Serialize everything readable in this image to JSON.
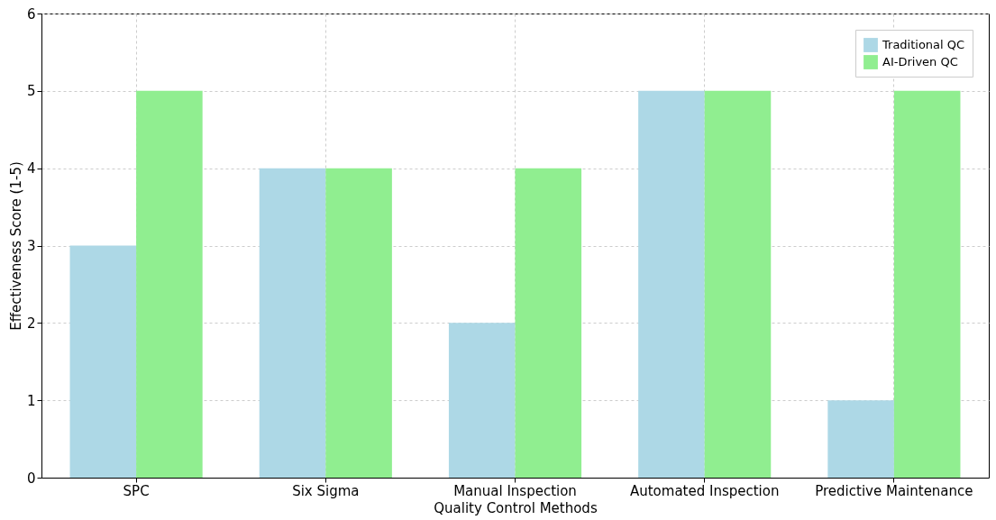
{
  "chart_data": {
    "type": "bar",
    "xlabel": "Quality Control Methods",
    "ylabel": "Effectiveness Score (1-5)",
    "categories": [
      "SPC",
      "Six Sigma",
      "Manual Inspection",
      "Automated Inspection",
      "Predictive Maintenance"
    ],
    "series": [
      {
        "name": "Traditional QC",
        "color": "#add8e6",
        "values": [
          3,
          4,
          2,
          5,
          1
        ]
      },
      {
        "name": "AI-Driven QC",
        "color": "#90ee90",
        "values": [
          5,
          4,
          4,
          5,
          5
        ]
      }
    ],
    "ylim": [
      0,
      6
    ],
    "yticks": [
      0,
      1,
      2,
      3,
      4,
      5,
      6
    ],
    "grid": true,
    "legend": "top right"
  }
}
